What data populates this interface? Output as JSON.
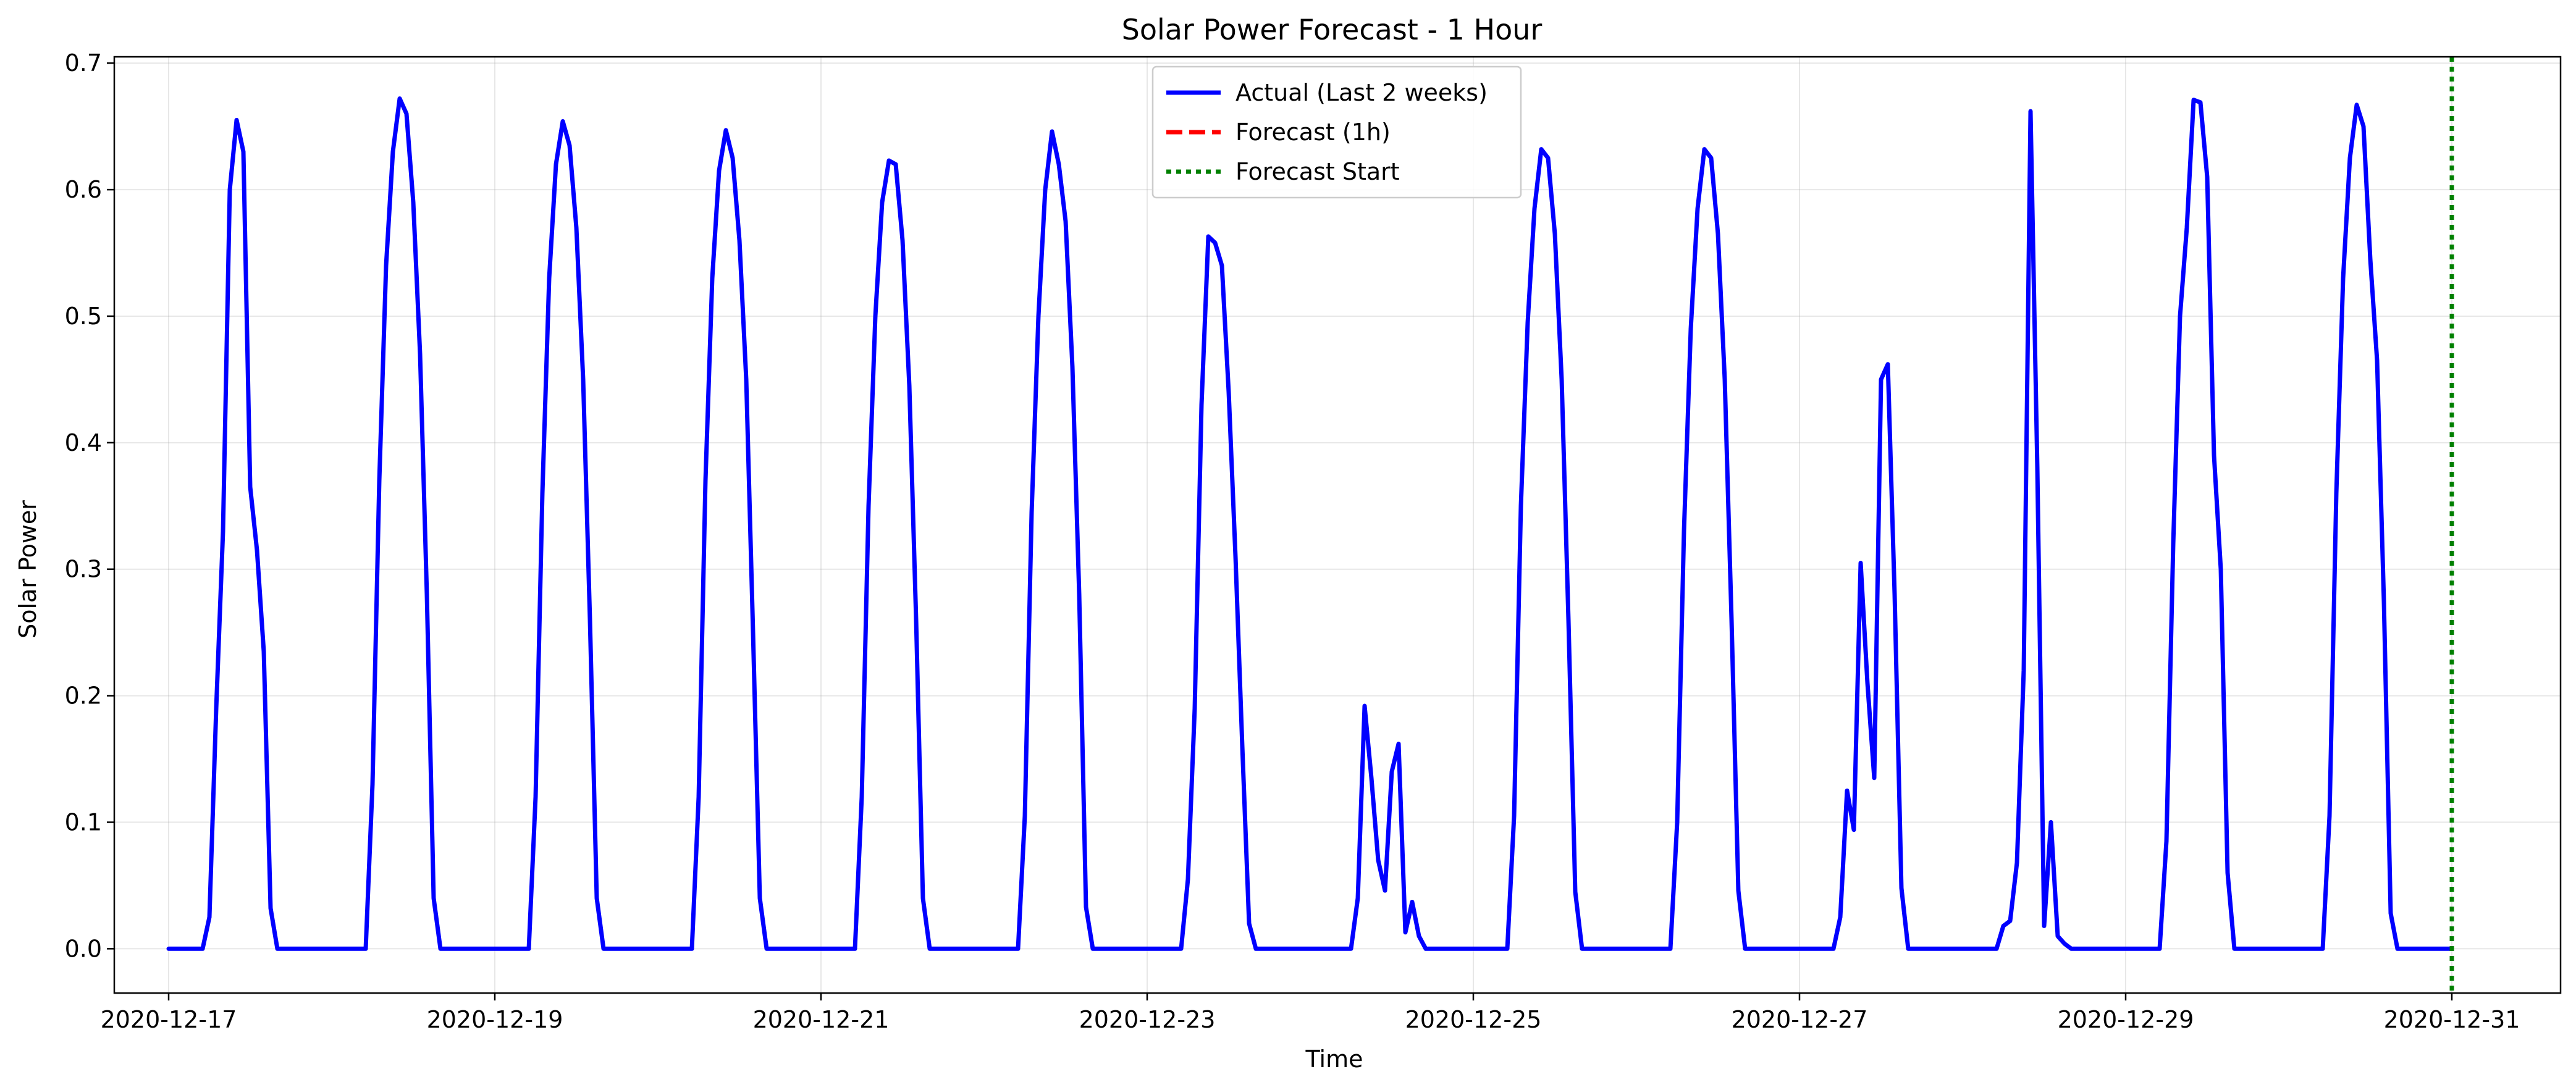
{
  "chart_data": {
    "type": "line",
    "title": "Solar Power Forecast - 1 Hour",
    "xlabel": "Time",
    "ylabel": "Solar Power",
    "xlim": [
      "2020-12-16T16:00",
      "2020-12-31T16:00"
    ],
    "ylim": [
      -0.035,
      0.705
    ],
    "x_ticks": [
      "2020-12-17",
      "2020-12-19",
      "2020-12-21",
      "2020-12-23",
      "2020-12-25",
      "2020-12-27",
      "2020-12-29",
      "2020-12-31"
    ],
    "y_ticks": [
      "0.0",
      "0.1",
      "0.2",
      "0.3",
      "0.4",
      "0.5",
      "0.6",
      "0.7"
    ],
    "grid": true,
    "legend_position": "upper center",
    "series": [
      {
        "name": "Actual (Last 2 weeks)",
        "color": "#0000ff",
        "style": "solid",
        "points": [
          [
            "2020-12-17T00:00",
            0.0
          ],
          [
            "2020-12-17T05:00",
            0.0
          ],
          [
            "2020-12-17T06:00",
            0.025
          ],
          [
            "2020-12-17T07:00",
            0.19
          ],
          [
            "2020-12-17T08:00",
            0.33
          ],
          [
            "2020-12-17T09:00",
            0.6
          ],
          [
            "2020-12-17T10:00",
            0.655
          ],
          [
            "2020-12-17T11:00",
            0.63
          ],
          [
            "2020-12-17T12:00",
            0.365
          ],
          [
            "2020-12-17T13:00",
            0.315
          ],
          [
            "2020-12-17T14:00",
            0.235
          ],
          [
            "2020-12-17T15:00",
            0.032
          ],
          [
            "2020-12-17T16:00",
            0.0
          ],
          [
            "2020-12-18T05:00",
            0.0
          ],
          [
            "2020-12-18T06:00",
            0.13
          ],
          [
            "2020-12-18T07:00",
            0.37
          ],
          [
            "2020-12-18T08:00",
            0.54
          ],
          [
            "2020-12-18T09:00",
            0.63
          ],
          [
            "2020-12-18T10:00",
            0.672
          ],
          [
            "2020-12-18T11:00",
            0.66
          ],
          [
            "2020-12-18T12:00",
            0.59
          ],
          [
            "2020-12-18T13:00",
            0.47
          ],
          [
            "2020-12-18T14:00",
            0.28
          ],
          [
            "2020-12-18T15:00",
            0.04
          ],
          [
            "2020-12-18T16:00",
            0.0
          ],
          [
            "2020-12-19T05:00",
            0.0
          ],
          [
            "2020-12-19T06:00",
            0.12
          ],
          [
            "2020-12-19T07:00",
            0.36
          ],
          [
            "2020-12-19T08:00",
            0.53
          ],
          [
            "2020-12-19T09:00",
            0.62
          ],
          [
            "2020-12-19T10:00",
            0.654
          ],
          [
            "2020-12-19T11:00",
            0.635
          ],
          [
            "2020-12-19T12:00",
            0.57
          ],
          [
            "2020-12-19T13:00",
            0.45
          ],
          [
            "2020-12-19T14:00",
            0.26
          ],
          [
            "2020-12-19T15:00",
            0.04
          ],
          [
            "2020-12-19T16:00",
            0.0
          ],
          [
            "2020-12-20T05:00",
            0.0
          ],
          [
            "2020-12-20T06:00",
            0.12
          ],
          [
            "2020-12-20T07:00",
            0.37
          ],
          [
            "2020-12-20T08:00",
            0.53
          ],
          [
            "2020-12-20T09:00",
            0.615
          ],
          [
            "2020-12-20T10:00",
            0.647
          ],
          [
            "2020-12-20T11:00",
            0.625
          ],
          [
            "2020-12-20T12:00",
            0.56
          ],
          [
            "2020-12-20T13:00",
            0.45
          ],
          [
            "2020-12-20T14:00",
            0.25
          ],
          [
            "2020-12-20T15:00",
            0.04
          ],
          [
            "2020-12-20T16:00",
            0.0
          ],
          [
            "2020-12-21T05:00",
            0.0
          ],
          [
            "2020-12-21T06:00",
            0.12
          ],
          [
            "2020-12-21T07:00",
            0.35
          ],
          [
            "2020-12-21T08:00",
            0.5
          ],
          [
            "2020-12-21T09:00",
            0.59
          ],
          [
            "2020-12-21T10:00",
            0.623
          ],
          [
            "2020-12-21T11:00",
            0.62
          ],
          [
            "2020-12-21T12:00",
            0.56
          ],
          [
            "2020-12-21T13:00",
            0.445
          ],
          [
            "2020-12-21T14:00",
            0.26
          ],
          [
            "2020-12-21T15:00",
            0.04
          ],
          [
            "2020-12-21T16:00",
            0.0
          ],
          [
            "2020-12-22T05:00",
            0.0
          ],
          [
            "2020-12-22T06:00",
            0.105
          ],
          [
            "2020-12-22T07:00",
            0.345
          ],
          [
            "2020-12-22T08:00",
            0.5
          ],
          [
            "2020-12-22T09:00",
            0.6
          ],
          [
            "2020-12-22T10:00",
            0.646
          ],
          [
            "2020-12-22T11:00",
            0.62
          ],
          [
            "2020-12-22T12:00",
            0.575
          ],
          [
            "2020-12-22T13:00",
            0.46
          ],
          [
            "2020-12-22T14:00",
            0.28
          ],
          [
            "2020-12-22T15:00",
            0.033
          ],
          [
            "2020-12-22T16:00",
            0.0
          ],
          [
            "2020-12-23T05:00",
            0.0
          ],
          [
            "2020-12-23T06:00",
            0.055
          ],
          [
            "2020-12-23T07:00",
            0.19
          ],
          [
            "2020-12-23T08:00",
            0.43
          ],
          [
            "2020-12-23T09:00",
            0.563
          ],
          [
            "2020-12-23T10:00",
            0.558
          ],
          [
            "2020-12-23T11:00",
            0.54
          ],
          [
            "2020-12-23T12:00",
            0.44
          ],
          [
            "2020-12-23T13:00",
            0.31
          ],
          [
            "2020-12-23T14:00",
            0.16
          ],
          [
            "2020-12-23T15:00",
            0.02
          ],
          [
            "2020-12-23T16:00",
            0.0
          ],
          [
            "2020-12-24T06:00",
            0.0
          ],
          [
            "2020-12-24T07:00",
            0.04
          ],
          [
            "2020-12-24T08:00",
            0.192
          ],
          [
            "2020-12-24T09:00",
            0.135
          ],
          [
            "2020-12-24T10:00",
            0.07
          ],
          [
            "2020-12-24T11:00",
            0.046
          ],
          [
            "2020-12-24T12:00",
            0.14
          ],
          [
            "2020-12-24T13:00",
            0.162
          ],
          [
            "2020-12-24T14:00",
            0.013
          ],
          [
            "2020-12-24T15:00",
            0.037
          ],
          [
            "2020-12-24T16:00",
            0.01
          ],
          [
            "2020-12-24T17:00",
            0.0
          ],
          [
            "2020-12-25T05:00",
            0.0
          ],
          [
            "2020-12-25T06:00",
            0.105
          ],
          [
            "2020-12-25T07:00",
            0.35
          ],
          [
            "2020-12-25T08:00",
            0.495
          ],
          [
            "2020-12-25T09:00",
            0.585
          ],
          [
            "2020-12-25T10:00",
            0.632
          ],
          [
            "2020-12-25T11:00",
            0.625
          ],
          [
            "2020-12-25T12:00",
            0.565
          ],
          [
            "2020-12-25T13:00",
            0.45
          ],
          [
            "2020-12-25T14:00",
            0.26
          ],
          [
            "2020-12-25T15:00",
            0.045
          ],
          [
            "2020-12-25T16:00",
            0.0
          ],
          [
            "2020-12-26T05:00",
            0.0
          ],
          [
            "2020-12-26T06:00",
            0.1
          ],
          [
            "2020-12-26T07:00",
            0.33
          ],
          [
            "2020-12-26T08:00",
            0.49
          ],
          [
            "2020-12-26T09:00",
            0.585
          ],
          [
            "2020-12-26T10:00",
            0.632
          ],
          [
            "2020-12-26T11:00",
            0.625
          ],
          [
            "2020-12-26T12:00",
            0.565
          ],
          [
            "2020-12-26T13:00",
            0.45
          ],
          [
            "2020-12-26T14:00",
            0.26
          ],
          [
            "2020-12-26T15:00",
            0.046
          ],
          [
            "2020-12-26T16:00",
            0.0
          ],
          [
            "2020-12-27T05:00",
            0.0
          ],
          [
            "2020-12-27T06:00",
            0.025
          ],
          [
            "2020-12-27T07:00",
            0.125
          ],
          [
            "2020-12-27T08:00",
            0.094
          ],
          [
            "2020-12-27T09:00",
            0.305
          ],
          [
            "2020-12-27T10:00",
            0.21
          ],
          [
            "2020-12-27T11:00",
            0.135
          ],
          [
            "2020-12-27T12:00",
            0.45
          ],
          [
            "2020-12-27T13:00",
            0.462
          ],
          [
            "2020-12-27T14:00",
            0.28
          ],
          [
            "2020-12-27T15:00",
            0.048
          ],
          [
            "2020-12-27T16:00",
            0.0
          ],
          [
            "2020-12-28T05:00",
            0.0
          ],
          [
            "2020-12-28T06:00",
            0.018
          ],
          [
            "2020-12-28T07:00",
            0.022
          ],
          [
            "2020-12-28T08:00",
            0.068
          ],
          [
            "2020-12-28T09:00",
            0.22
          ],
          [
            "2020-12-28T10:00",
            0.662
          ],
          [
            "2020-12-28T11:00",
            0.38
          ],
          [
            "2020-12-28T12:00",
            0.018
          ],
          [
            "2020-12-28T13:00",
            0.1
          ],
          [
            "2020-12-28T14:00",
            0.01
          ],
          [
            "2020-12-28T15:00",
            0.004
          ],
          [
            "2020-12-28T16:00",
            0.0
          ],
          [
            "2020-12-29T05:00",
            0.0
          ],
          [
            "2020-12-29T06:00",
            0.085
          ],
          [
            "2020-12-29T07:00",
            0.32
          ],
          [
            "2020-12-29T08:00",
            0.5
          ],
          [
            "2020-12-29T09:00",
            0.57
          ],
          [
            "2020-12-29T10:00",
            0.671
          ],
          [
            "2020-12-29T11:00",
            0.669
          ],
          [
            "2020-12-29T12:00",
            0.61
          ],
          [
            "2020-12-29T13:00",
            0.39
          ],
          [
            "2020-12-29T14:00",
            0.3
          ],
          [
            "2020-12-29T15:00",
            0.06
          ],
          [
            "2020-12-29T16:00",
            0.0
          ],
          [
            "2020-12-30T05:00",
            0.0
          ],
          [
            "2020-12-30T06:00",
            0.105
          ],
          [
            "2020-12-30T07:00",
            0.36
          ],
          [
            "2020-12-30T08:00",
            0.53
          ],
          [
            "2020-12-30T09:00",
            0.625
          ],
          [
            "2020-12-30T10:00",
            0.667
          ],
          [
            "2020-12-30T11:00",
            0.65
          ],
          [
            "2020-12-30T12:00",
            0.545
          ],
          [
            "2020-12-30T13:00",
            0.465
          ],
          [
            "2020-12-30T14:00",
            0.275
          ],
          [
            "2020-12-30T15:00",
            0.028
          ],
          [
            "2020-12-30T16:00",
            0.0
          ],
          [
            "2020-12-31T00:00",
            0.0
          ]
        ]
      },
      {
        "name": "Forecast (1h)",
        "color": "#ff0000",
        "style": "dashed",
        "points": []
      }
    ],
    "vlines": [
      {
        "name": "Forecast Start",
        "x": "2020-12-31T00:00",
        "color": "#008000",
        "style": "dotted"
      }
    ]
  }
}
